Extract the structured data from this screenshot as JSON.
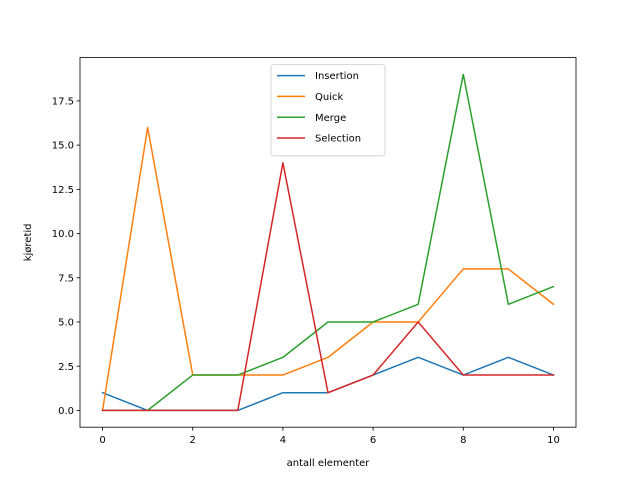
{
  "chart_data": {
    "type": "line",
    "title": "",
    "xlabel": "antall elementer",
    "ylabel": "kjøretid",
    "x": [
      0,
      1,
      2,
      3,
      4,
      5,
      6,
      7,
      8,
      9,
      10
    ],
    "xlim": [
      -0.5,
      10.5
    ],
    "ylim": [
      -0.95,
      19.95
    ],
    "xticks": [
      0,
      2,
      4,
      6,
      8,
      10
    ],
    "yticks": [
      0.0,
      2.5,
      5.0,
      7.5,
      10.0,
      12.5,
      15.0,
      17.5
    ],
    "ytick_labels": [
      "0.0",
      "2.5",
      "5.0",
      "7.5",
      "10.0",
      "12.5",
      "15.0",
      "17.5"
    ],
    "grid": false,
    "legend": "top-center",
    "series": [
      {
        "name": "Insertion",
        "color": "#1f77b4",
        "values": [
          1,
          0,
          0,
          0,
          1,
          1,
          2,
          3,
          2,
          3,
          2
        ]
      },
      {
        "name": "Quick",
        "color": "#ff7f0e",
        "values": [
          0,
          16,
          2,
          2,
          2,
          3,
          5,
          5,
          8,
          8,
          6
        ]
      },
      {
        "name": "Merge",
        "color": "#2ca02c",
        "values": [
          0,
          0,
          2,
          2,
          3,
          5,
          5,
          6,
          19,
          6,
          7
        ]
      },
      {
        "name": "Selection",
        "color": "#d62728",
        "values": [
          0,
          0,
          0,
          0,
          14,
          1,
          2,
          5,
          2,
          2,
          2
        ]
      }
    ]
  }
}
